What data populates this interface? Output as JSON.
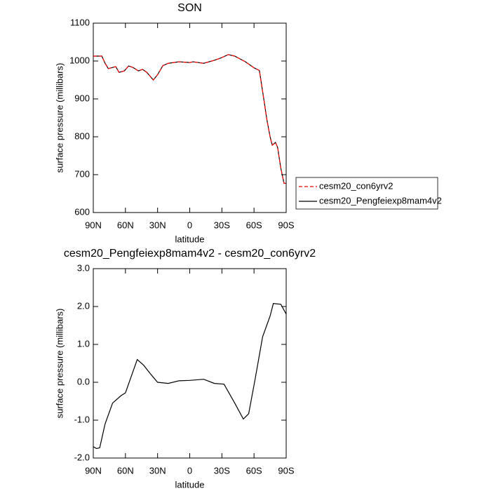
{
  "chart_data": [
    {
      "type": "line",
      "title": "SON",
      "x_label": "latitude",
      "y_label": "surface pressure (millibars)",
      "xlim": [
        90,
        -90
      ],
      "ylim": [
        600,
        1100
      ],
      "xticks": [
        {
          "value": 90,
          "label": "90N"
        },
        {
          "value": 60,
          "label": "60N"
        },
        {
          "value": 30,
          "label": "30N"
        },
        0,
        {
          "value": -30,
          "label": "30S"
        },
        {
          "value": -60,
          "label": "60S"
        },
        {
          "value": -90,
          "label": "90S"
        }
      ],
      "yticks": [
        600,
        700,
        800,
        900,
        1000,
        1100
      ],
      "legend": "right",
      "x": [
        90,
        82,
        79,
        76,
        72,
        69,
        66,
        61,
        57,
        53,
        48,
        44,
        40,
        34,
        30,
        25,
        20,
        10,
        0,
        -3,
        -13,
        -23,
        -29,
        -36,
        -42,
        -52,
        -60,
        -65,
        -68,
        -72,
        -75,
        -77,
        -80,
        -82,
        -85,
        -88,
        -90
      ],
      "series": [
        {
          "name": "cesm20_con6yrv2",
          "color": "#ff0000",
          "dashed": true,
          "values": [
            1013,
            1013,
            994,
            980,
            983,
            985,
            970,
            974,
            987,
            983,
            974,
            978,
            970,
            950,
            964,
            988,
            994,
            998,
            996,
            998,
            994,
            1002,
            1008,
            1017,
            1013,
            998,
            982,
            975,
            920,
            845,
            800,
            778,
            785,
            772,
            717,
            677,
            677
          ]
        },
        {
          "name": "cesm20_Pengfeiexp8mam4v2",
          "color": "#000000",
          "dashed": false,
          "values": [
            1013,
            1013,
            994,
            980,
            983,
            985,
            970,
            974,
            987,
            983,
            974,
            978,
            970,
            950,
            964,
            988,
            994,
            998,
            996,
            998,
            994,
            1002,
            1008,
            1017,
            1013,
            998,
            982,
            975,
            920,
            845,
            800,
            778,
            785,
            772,
            717,
            677,
            677
          ]
        }
      ]
    },
    {
      "type": "line",
      "title": "cesm20_Pengfeiexp8mam4v2 - cesm20_con6yrv2",
      "x_label": "latitude",
      "y_label": "surface pressure (millibars)",
      "xlim": [
        90,
        -90
      ],
      "ylim": [
        -2,
        3
      ],
      "xticks": [
        {
          "value": 90,
          "label": "90N"
        },
        {
          "value": 60,
          "label": "60N"
        },
        {
          "value": 30,
          "label": "30N"
        },
        0,
        {
          "value": -30,
          "label": "30S"
        },
        {
          "value": -60,
          "label": "60S"
        },
        {
          "value": -90,
          "label": "90S"
        }
      ],
      "yticks": [
        {
          "value": -2,
          "label": "-2.0"
        },
        {
          "value": -1,
          "label": "-1.0"
        },
        {
          "value": 0,
          "label": "0.0"
        },
        {
          "value": 1,
          "label": "1.0"
        },
        {
          "value": 2,
          "label": "2.0"
        },
        {
          "value": 3,
          "label": "3.0"
        }
      ],
      "x": [
        90,
        87,
        84,
        79,
        72,
        64,
        60,
        49,
        43,
        36,
        30,
        20,
        10,
        0,
        -13,
        -23,
        -32,
        -42,
        -50,
        -55,
        -61,
        -68,
        -75,
        -78,
        -85,
        -90
      ],
      "series": [
        {
          "color": "#000000",
          "dashed": false,
          "values": [
            -1.7,
            -1.75,
            -1.73,
            -1.1,
            -0.55,
            -0.35,
            -0.28,
            0.6,
            0.45,
            0.2,
            0,
            -0.03,
            0.04,
            0.05,
            0.08,
            -0.03,
            -0.05,
            -0.55,
            -0.97,
            -0.83,
            0.08,
            1.2,
            1.75,
            2.08,
            2.06,
            1.8
          ]
        }
      ]
    }
  ]
}
